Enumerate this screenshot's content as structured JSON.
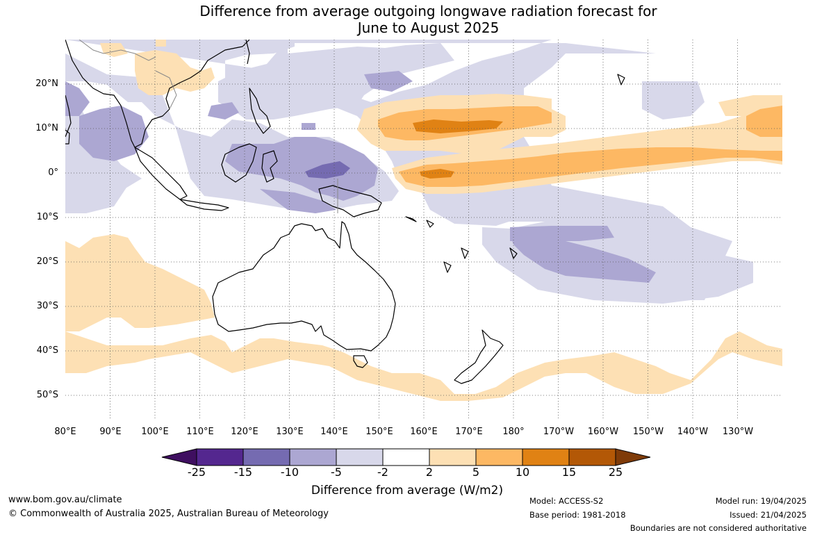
{
  "title": {
    "line1": "Difference from average outgoing longwave radiation forecast for",
    "line2": "June to August 2025"
  },
  "map": {
    "lat_labels": [
      "20°N",
      "10°N",
      "0°",
      "10°S",
      "20°S",
      "30°S",
      "40°S",
      "50°S"
    ],
    "lon_labels": [
      "80°E",
      "90°E",
      "100°E",
      "110°E",
      "120°E",
      "130°E",
      "140°E",
      "150°E",
      "160°E",
      "170°E",
      "180°",
      "170°W",
      "160°W",
      "150°W",
      "140°W",
      "130°W"
    ],
    "lon_range": [
      80,
      240
    ],
    "lat_range": [
      -56,
      30
    ],
    "gridlines": true,
    "regions": [
      {
        "name": "Northern Indian Ocean negative anomaly",
        "level": "-5 to -2"
      },
      {
        "name": "Maritime Continent negative anomaly",
        "level": "-10 to -5"
      },
      {
        "name": "North Pacific positive anomaly",
        "level": "5 to 10"
      },
      {
        "name": "Equatorial Pacific positive anomaly",
        "level": "5 to 10"
      },
      {
        "name": "South Pacific negative anomaly",
        "level": "-10 to -5"
      },
      {
        "name": "Southern Indian Ocean positive anomaly",
        "level": "2 to 5"
      },
      {
        "name": "Tasman Sea positive anomaly",
        "level": "2 to 5"
      }
    ]
  },
  "colorbar": {
    "ticks": [
      "-25",
      "-15",
      "-10",
      "-5",
      "-2",
      "2",
      "5",
      "10",
      "15",
      "25"
    ],
    "colors": [
      "#3f0f60",
      "#54278f",
      "#756bb1",
      "#aca7d2",
      "#d8d8ea",
      "#ffffff",
      "#fde0b4",
      "#fdb863",
      "#e08214",
      "#b35806",
      "#7f3b08"
    ],
    "label": "Difference from average (W/m2)"
  },
  "footer": {
    "website": "www.bom.gov.au/climate",
    "copyright": "© Commonwealth of Australia 2025, Australian Bureau of Meteorology",
    "model": "Model: ACCESS-S2",
    "base_period": "Base period: 1981-2018",
    "model_run": "Model run: 19/04/2025",
    "issued": "Issued: 21/04/2025",
    "disclaimer": "Boundaries are not considered authoritative"
  }
}
